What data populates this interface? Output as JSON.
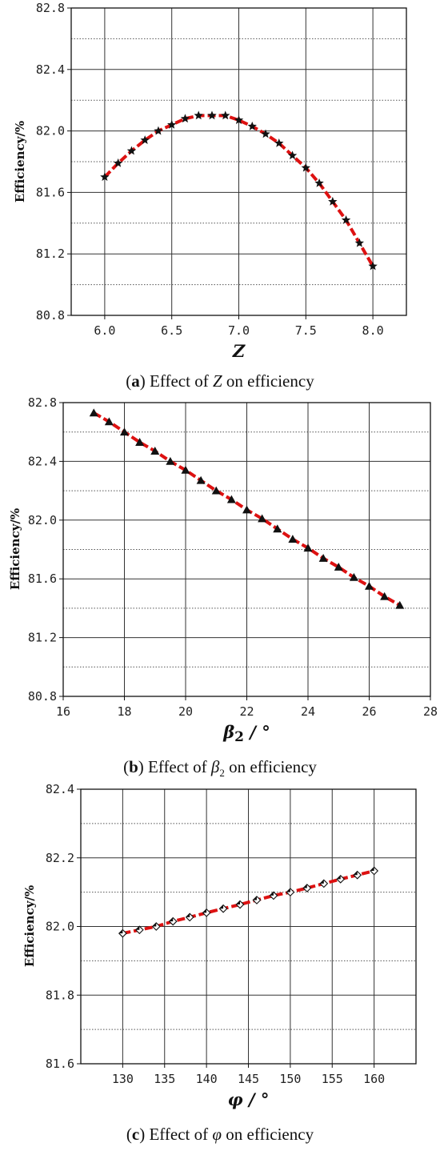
{
  "captions": [
    {
      "open": "(",
      "letter": "a",
      "close": ")",
      "text": " Effect of ",
      "symbol": "Z",
      "sub": "",
      "tail": " on efficiency"
    },
    {
      "open": "(",
      "letter": "b",
      "close": ")",
      "text": " Effect of ",
      "symbol": "β",
      "sub": "2",
      "tail": " on efficiency"
    },
    {
      "open": "(",
      "letter": "c",
      "close": ")",
      "text": " Effect of ",
      "symbol": "φ",
      "sub": "",
      "tail": " on efficiency"
    }
  ],
  "chart_data": [
    {
      "type": "line",
      "title": "",
      "xlabel": "Z",
      "ylabel": "Efficiency/%",
      "xlim": [
        5.75,
        8.25
      ],
      "ylim": [
        80.8,
        82.8
      ],
      "xticks": [
        6.0,
        6.5,
        7.0,
        7.5,
        8.0
      ],
      "xtick_labels": [
        "6.0",
        "6.5",
        "7.0",
        "7.5",
        "8.0"
      ],
      "yticks": [
        80.8,
        81.2,
        81.6,
        82.0,
        82.4,
        82.8
      ],
      "ytick_labels": [
        "80.8",
        "81.2",
        "81.6",
        "82.0",
        "82.4",
        "82.8"
      ],
      "grid": true,
      "line_color": "#dd1111",
      "marker": "star",
      "series": [
        {
          "x": [
            6.0,
            6.1,
            6.2,
            6.3,
            6.4,
            6.5,
            6.6,
            6.7,
            6.8,
            6.9,
            7.0,
            7.1,
            7.2,
            7.3,
            7.4,
            7.5,
            7.6,
            7.7,
            7.8,
            7.9,
            8.0
          ],
          "values": [
            81.7,
            81.79,
            81.87,
            81.94,
            82.0,
            82.04,
            82.08,
            82.1,
            82.1,
            82.1,
            82.07,
            82.03,
            81.98,
            81.92,
            81.84,
            81.76,
            81.66,
            81.54,
            81.42,
            81.27,
            81.12
          ]
        }
      ]
    },
    {
      "type": "line",
      "title": "",
      "xlabel": "β2 / °",
      "xlabel_parts": {
        "symbol": "β",
        "sub": "2",
        "unit": " / °"
      },
      "ylabel": "Efficiency/%",
      "xlim": [
        16,
        28
      ],
      "ylim": [
        80.8,
        82.8
      ],
      "xticks": [
        16,
        18,
        20,
        22,
        24,
        26,
        28
      ],
      "xtick_labels": [
        "16",
        "18",
        "20",
        "22",
        "24",
        "26",
        "28"
      ],
      "yticks": [
        80.8,
        81.2,
        81.6,
        82.0,
        82.4,
        82.8
      ],
      "ytick_labels": [
        "80.8",
        "81.2",
        "81.6",
        "82.0",
        "82.4",
        "82.8"
      ],
      "grid": true,
      "line_color": "#dd1111",
      "marker": "triangle",
      "series": [
        {
          "x": [
            17,
            17.5,
            18,
            18.5,
            19,
            19.5,
            20,
            20.5,
            21,
            21.5,
            22,
            22.5,
            23,
            23.5,
            24,
            24.5,
            25,
            25.5,
            26,
            26.5,
            27
          ],
          "values": [
            82.73,
            82.67,
            82.6,
            82.53,
            82.47,
            82.4,
            82.34,
            82.27,
            82.2,
            82.14,
            82.07,
            82.01,
            81.94,
            81.87,
            81.81,
            81.74,
            81.68,
            81.61,
            81.55,
            81.48,
            81.42
          ]
        }
      ]
    },
    {
      "type": "line",
      "title": "",
      "xlabel": "φ / °",
      "ylabel": "Efficiency/%",
      "xlim": [
        125,
        165
      ],
      "ylim": [
        81.6,
        82.4
      ],
      "xticks": [
        130,
        135,
        140,
        145,
        150,
        155,
        160
      ],
      "xtick_labels": [
        "130",
        "135",
        "140",
        "145",
        "150",
        "155",
        "160"
      ],
      "yticks": [
        81.6,
        81.8,
        82.0,
        82.2,
        82.4
      ],
      "ytick_labels": [
        "81.6",
        "81.8",
        "82.0",
        "82.2",
        "82.4"
      ],
      "grid": true,
      "line_color": "#dd1111",
      "marker": "diamond",
      "series": [
        {
          "x": [
            130,
            132,
            134,
            136,
            138,
            140,
            142,
            144,
            146,
            148,
            150,
            152,
            154,
            156,
            158,
            160
          ],
          "values": [
            81.98,
            81.99,
            82.0,
            82.015,
            82.027,
            82.04,
            82.052,
            82.064,
            82.077,
            82.09,
            82.1,
            82.112,
            82.125,
            82.138,
            82.15,
            82.162
          ]
        }
      ]
    }
  ]
}
